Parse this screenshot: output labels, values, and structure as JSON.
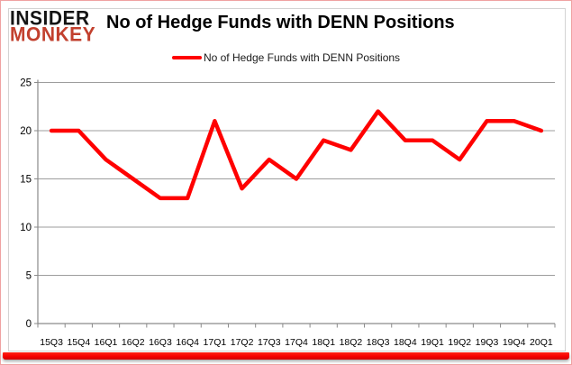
{
  "brand": {
    "line1": "INSIDER",
    "line2": "MONKEY",
    "line1_color": "#141414",
    "line2_color": "#c2402e"
  },
  "header": {
    "title": "No of Hedge Funds with DENN Positions"
  },
  "legend": {
    "label": "No of Hedge Funds with DENN Positions",
    "swatch_color": "#ff0000"
  },
  "colors": {
    "series_red": "#ff0000",
    "gridline": "#9d9d9d",
    "axis": "#8a8a8a",
    "tick_label": "#000000",
    "frame_border": "#f0a2a2",
    "widget_border": "#d4d4d4",
    "bottom_bar": "#f70000"
  },
  "chart_data": {
    "type": "line",
    "title": "No of Hedge Funds with DENN Positions",
    "xlabel": "",
    "ylabel": "",
    "categories": [
      "15Q3",
      "15Q4",
      "16Q1",
      "16Q2",
      "16Q3",
      "16Q4",
      "17Q1",
      "17Q2",
      "17Q3",
      "17Q4",
      "18Q1",
      "18Q2",
      "18Q3",
      "18Q4",
      "19Q1",
      "19Q2",
      "19Q3",
      "19Q4",
      "20Q1"
    ],
    "series": [
      {
        "name": "No of Hedge Funds with DENN Positions",
        "color": "#ff0000",
        "values": [
          20,
          20,
          17,
          15,
          13,
          13,
          21,
          14,
          17,
          15,
          19,
          18,
          22,
          19,
          19,
          17,
          21,
          21,
          20
        ]
      }
    ],
    "ylim": [
      0,
      25
    ],
    "yticks": [
      0,
      5,
      10,
      15,
      20,
      25
    ],
    "grid": true,
    "legend_position": "top-center"
  }
}
